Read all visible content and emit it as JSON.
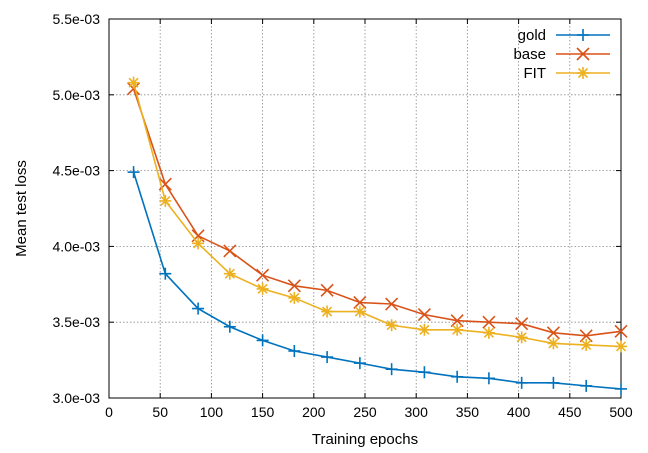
{
  "chart_data": {
    "type": "line",
    "title": "",
    "xlabel": "Training epochs",
    "ylabel": "Mean test loss",
    "xlim": [
      0,
      500
    ],
    "ylim": [
      0.003,
      0.0055
    ],
    "x_ticks": [
      0,
      50,
      100,
      150,
      200,
      250,
      300,
      350,
      400,
      450,
      500
    ],
    "x_tick_labels": [
      "0",
      "50",
      "100",
      "150",
      "200",
      "250",
      "300",
      "350",
      "400",
      "450",
      "500"
    ],
    "y_ticks": [
      0.003,
      0.0035,
      0.004,
      0.0045,
      0.005,
      0.0055
    ],
    "y_tick_labels": [
      "3.0e-03",
      "3.5e-03",
      "4.0e-03",
      "4.5e-03",
      "5.0e-03",
      "5.5e-03"
    ],
    "grid": true,
    "legend_position": "top-right",
    "x": [
      24,
      55,
      87,
      118,
      150,
      181,
      213,
      245,
      276,
      308,
      340,
      371,
      403,
      434,
      466,
      500
    ],
    "series": [
      {
        "name": "gold",
        "color": "#0072bd",
        "marker": "plus",
        "values": [
          0.00449,
          0.00382,
          0.00359,
          0.00347,
          0.00338,
          0.00331,
          0.00327,
          0.00323,
          0.00319,
          0.00317,
          0.00314,
          0.00313,
          0.0031,
          0.0031,
          0.00308,
          0.00306
        ]
      },
      {
        "name": "base",
        "color": "#d95319",
        "marker": "x",
        "values": [
          0.00504,
          0.00441,
          0.00407,
          0.00397,
          0.00381,
          0.00374,
          0.00371,
          0.00363,
          0.00362,
          0.00355,
          0.00351,
          0.0035,
          0.00349,
          0.00343,
          0.00341,
          0.00344
        ]
      },
      {
        "name": "FIT",
        "color": "#edb120",
        "marker": "star",
        "values": [
          0.00508,
          0.0043,
          0.00402,
          0.00382,
          0.00372,
          0.00366,
          0.00357,
          0.00357,
          0.00348,
          0.00345,
          0.00345,
          0.00343,
          0.0034,
          0.00336,
          0.00335,
          0.00334
        ]
      }
    ]
  }
}
